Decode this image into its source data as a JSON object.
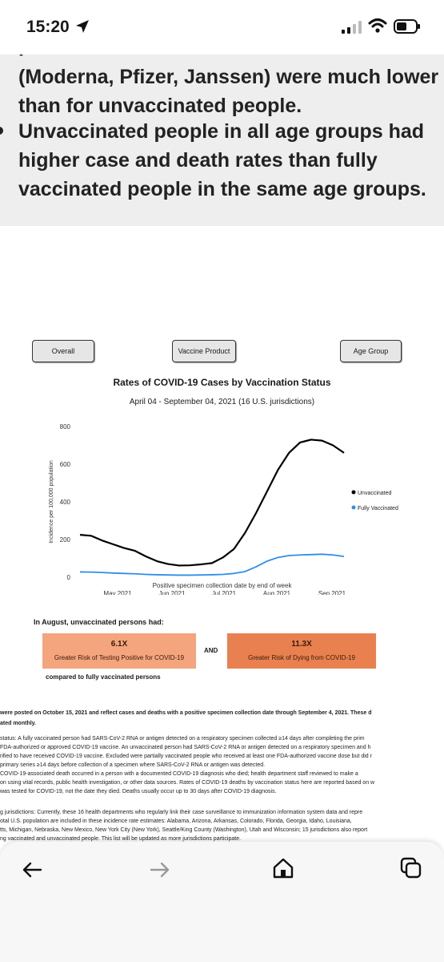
{
  "status_bar": {
    "time": "15:20"
  },
  "panel": {
    "line0": "(Moderna, Pfizer, Janssen) were much lower",
    "line1": "than for unvaccinated people.",
    "line2": "Unvaccinated people in all age groups had",
    "line3": "higher case and death rates than fully",
    "line4": "vaccinated people in the same age groups."
  },
  "tabs": {
    "overall": "Overall",
    "vaccine_product": "Vaccine Product",
    "age_group": "Age Group"
  },
  "chart_data": {
    "type": "line",
    "title": "Rates of COVID-19 Cases by Vaccination Status",
    "subtitle": "April 04 - September 04, 2021 (16 U.S. jurisdictions)",
    "xlabel": "Positive specimen collection date by end of week",
    "ylabel": "Incidence per 100,000 population",
    "ylim": [
      0,
      800
    ],
    "yticks": [
      "0",
      "200",
      "400",
      "600",
      "800"
    ],
    "xtick_labels": [
      "May 2021",
      "Jun 2021",
      "Jul 2021",
      "Aug 2021",
      "Sep 2021"
    ],
    "legend_placement": "right",
    "series": [
      {
        "name": "Unvaccinated",
        "color": "#000000",
        "values": [
          225,
          220,
          195,
          175,
          155,
          140,
          110,
          85,
          70,
          62,
          63,
          68,
          75,
          105,
          150,
          235,
          340,
          455,
          570,
          660,
          715,
          730,
          725,
          700,
          660
        ]
      },
      {
        "name": "Fully Vaccinated",
        "color": "#2f8fe6",
        "values": [
          28,
          27,
          25,
          22,
          20,
          18,
          15,
          13,
          12,
          11,
          11,
          12,
          13,
          15,
          20,
          30,
          55,
          85,
          105,
          115,
          118,
          120,
          122,
          118,
          110
        ]
      }
    ]
  },
  "summary": {
    "lead": "In August, unvaccinated persons had:",
    "case_ratio": "6.1X",
    "case_label": "Greater Risk of Testing Positive for COVID-19",
    "and": "AND",
    "death_ratio": "11.3X",
    "death_label": "Greater Risk of Dying from COVID-19",
    "tail": "compared to fully vaccinated persons"
  },
  "notes": {
    "n0": "were posted on October 15, 2021 and reflect cases and deaths with a positive specimen collection date through September 4, 2021. These d",
    "n1": "ated monthly.",
    "n2": "status: A fully vaccinated person had SARS-CoV-2 RNA or antigen detected on a respiratory specimen collected ≥14 days after completing the prim",
    "n3": "FDA-authorized or approved COVID-19 vaccine. An unvaccinated person had SARS-CoV-2 RNA or antigen detected on a respiratory specimen and h",
    "n4": "rified to have received COVID-19 vaccine. Excluded were partially vaccinated people who received at least one FDA-authorized vaccine dose but did r",
    "n5": "primary series ≥14 days before collection of a specimen where SARS-CoV-2 RNA or antigen was detected.",
    "n6": "COVID-19-associated death occurred in a person with a documented COVID-19 diagnosis who died; health department staff reviewed to make a",
    "n7": "on using vital records, public health investigation, or other data sources. Rates of COVID-19 deaths by vaccination status here are reported based on w",
    "n8": "was tested for COVID-19, not the date they died. Deaths usually occur up to 30 days after COVID-19 diagnosis.",
    "n9": "g jurisdictions: Currently, these 16 health departments who regularly link their case surveillance to immunization information system data and repre",
    "n10": "otal U.S. population are included in these incidence rate estimates: Alabama, Arizona, Arkansas, Colorado, Florida, Georgia, Idaho, Louisiana,",
    "n11": "tts, Michigan, Nebraska, New Mexico, New York City (New York), Seattle/King County (Washington), Utah and Wisconsin; 15 jurisdictions also report",
    "n12": "ng vaccinated and unvaccinated people. This list will be updated as more jurisdictions participate."
  },
  "icons": {
    "back": "back-arrow-icon",
    "forward": "forward-arrow-icon",
    "home": "home-icon",
    "tabs": "tabs-icon"
  }
}
